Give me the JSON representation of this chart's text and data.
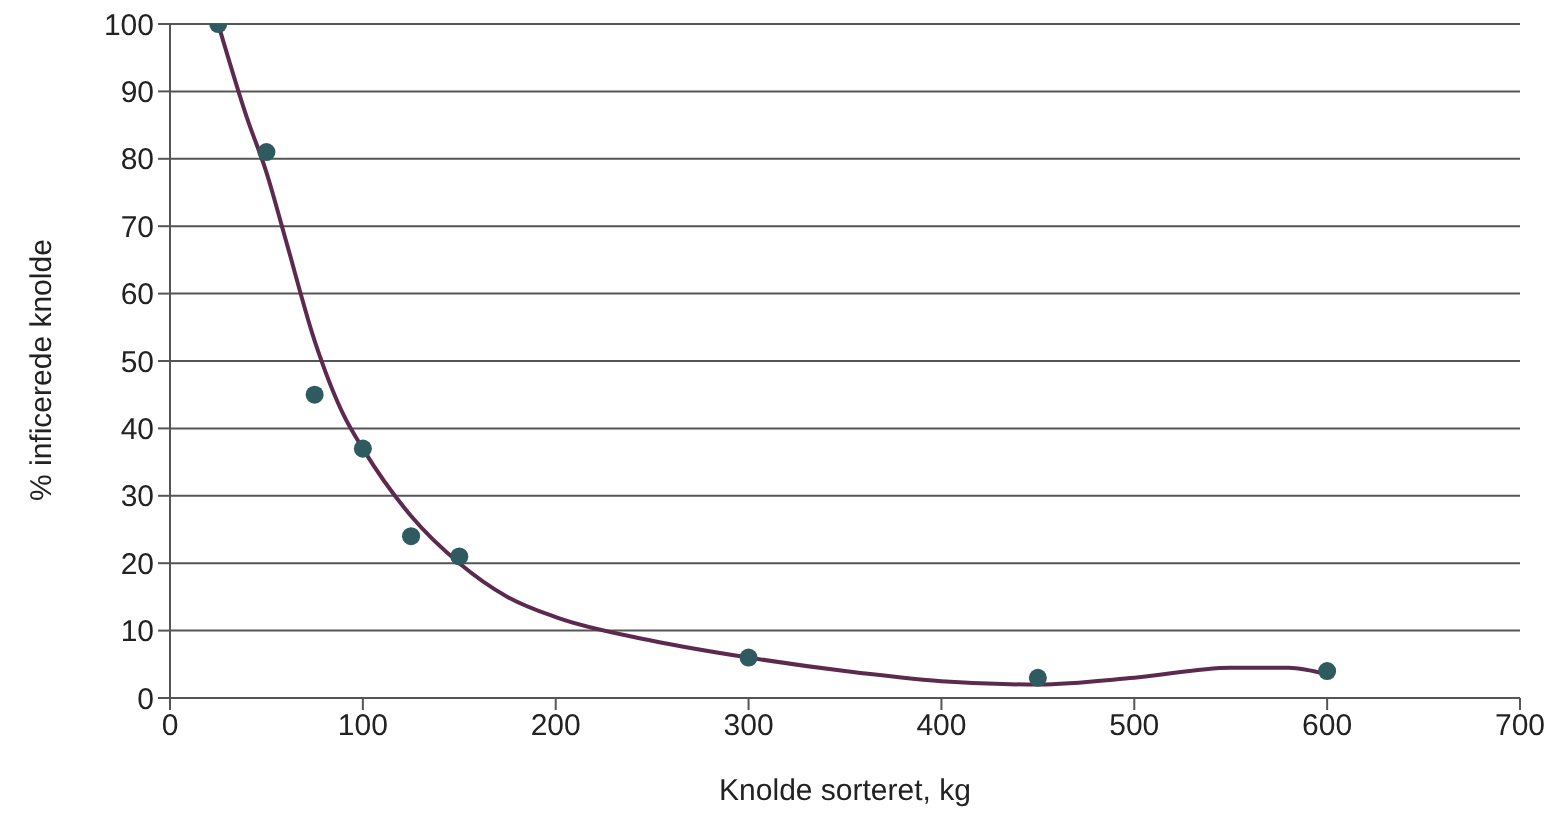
{
  "chart_data": {
    "type": "scatter",
    "xlabel": "Knolde sorteret, kg",
    "ylabel": "% inficerede knolde",
    "xlim": [
      0,
      700
    ],
    "xticks": [
      0,
      100,
      200,
      300,
      400,
      500,
      600,
      700
    ],
    "ylim": [
      0,
      100
    ],
    "yticks": [
      0,
      10,
      20,
      30,
      40,
      50,
      60,
      70,
      80,
      90,
      100
    ],
    "grid": "y",
    "series": [
      {
        "color": "#2f5b60",
        "marker": "circle",
        "x": [
          25,
          50,
          75,
          100,
          125,
          150,
          300,
          450,
          600
        ],
        "values": [
          100,
          81,
          45,
          37,
          24,
          21,
          6,
          3,
          4
        ]
      },
      {
        "type": "line",
        "color": "#5c2a4e",
        "x": [
          25,
          40,
          50,
          60,
          75,
          90,
          100,
          125,
          150,
          175,
          200,
          250,
          300,
          350,
          400,
          450,
          500,
          550,
          580,
          600
        ],
        "values": [
          100,
          86,
          78,
          68,
          53,
          42,
          37,
          27,
          20,
          15,
          12,
          8.5,
          6,
          4,
          2.5,
          2,
          3,
          4.5,
          4.5,
          3.5
        ]
      }
    ]
  }
}
